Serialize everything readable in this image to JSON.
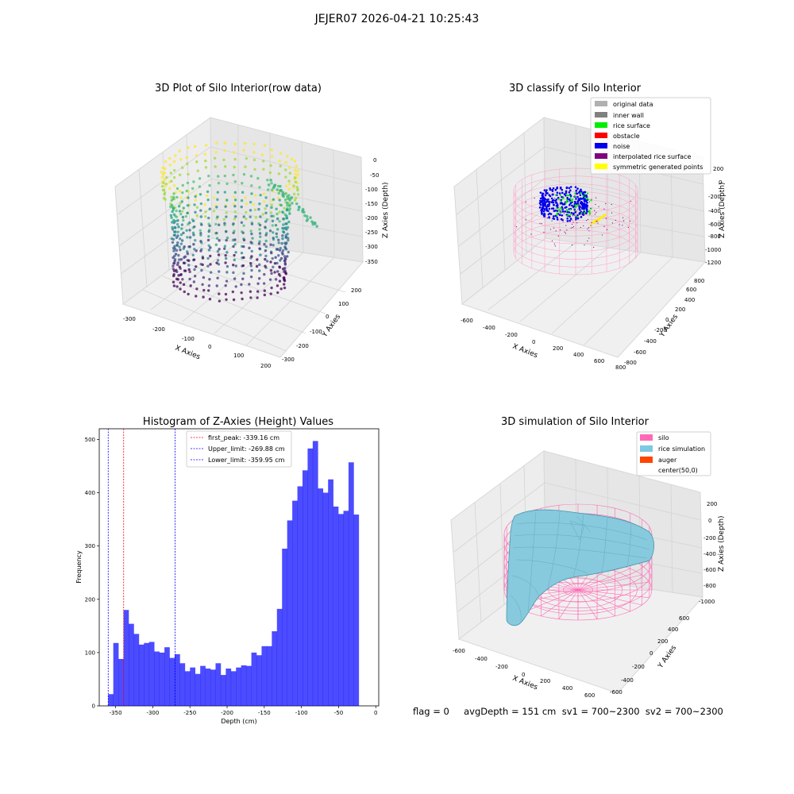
{
  "figure": {
    "suptitle": "JEJER07 2026-04-21 10:25:43",
    "footer": "flag = 0     avgDepth = 151 cm  sv1 = 700~2300  sv2 = 700~2300"
  },
  "panels": {
    "raw": {
      "title": "3D Plot of Silo Interior(row data)",
      "xlabel": "X Axies",
      "ylabel": "Y Axies",
      "zlabel": "Z Axies (Depth)",
      "xticks": [
        "-300",
        "-200",
        "-100",
        "0",
        "100",
        "200"
      ],
      "yticks": [
        "-300",
        "-200",
        "-100",
        "0",
        "100",
        "200"
      ],
      "zticks": [
        "0",
        "-50",
        "-100",
        "-150",
        "-200",
        "-250",
        "-300",
        "-350"
      ]
    },
    "classify": {
      "title": "3D classify of Silo Interior",
      "xlabel": "X Axies",
      "ylabel": "Y Axies",
      "zlabel": "Z Axies (Depth)",
      "xticks": [
        "-600",
        "-400",
        "-200",
        "0",
        "200",
        "400",
        "600",
        "800"
      ],
      "yticks": [
        "-800",
        "-600",
        "-400",
        "-200",
        "0",
        "200",
        "400",
        "600",
        "800"
      ],
      "zticks": [
        "200",
        "0",
        "-200",
        "-400",
        "-600",
        "-800",
        "-1000",
        "-1200"
      ],
      "legend": [
        {
          "label": "original data",
          "color": "#b0b0b0"
        },
        {
          "label": "inner wall",
          "color": "#808080"
        },
        {
          "label": "rice surface",
          "color": "#00ee00"
        },
        {
          "label": "obstacle",
          "color": "#ff0000"
        },
        {
          "label": "noise",
          "color": "#0000ee"
        },
        {
          "label": "interpolated rice surface",
          "color": "#800080"
        },
        {
          "label": "symmetric generated points",
          "color": "#ffff00"
        }
      ]
    },
    "simulation": {
      "title": "3D simulation of Silo Interior",
      "xlabel": "X Axies",
      "ylabel": "Y Axies",
      "zlabel": "Z Axies (Depth)",
      "xticks": [
        "-600",
        "-400",
        "-200",
        "0",
        "200",
        "400",
        "600"
      ],
      "yticks": [
        "-600",
        "-400",
        "-200",
        "0",
        "200",
        "400",
        "600"
      ],
      "zticks": [
        "200",
        "0",
        "-200",
        "-400",
        "-600",
        "-800",
        "-1000"
      ],
      "legend": [
        {
          "label": "silo",
          "color": "#ff69b4"
        },
        {
          "label": "rice simulation",
          "color": "#7ec8e3"
        },
        {
          "label": "auger",
          "color": "#ff4500"
        },
        {
          "label": "center(50,0)",
          "color": ""
        }
      ]
    }
  },
  "chart_data": [
    {
      "type": "histogram",
      "title": "Histogram of Z-Axies (Height) Values",
      "xlabel": "Depth (cm)",
      "ylabel": "Frequency",
      "xlim": [
        -372,
        4
      ],
      "ylim": [
        0,
        520
      ],
      "xticks": [
        -350,
        -300,
        -250,
        -200,
        -150,
        -100,
        -50,
        0
      ],
      "yticks": [
        0,
        100,
        200,
        300,
        400,
        500
      ],
      "bar_color": "#0000ff",
      "bins": {
        "start": -360,
        "width": 6.88,
        "counts": [
          22,
          118,
          88,
          180,
          154,
          135,
          115,
          118,
          120,
          102,
          100,
          110,
          90,
          97,
          80,
          65,
          72,
          60,
          75,
          70,
          68,
          80,
          58,
          70,
          65,
          72,
          76,
          75,
          100,
          95,
          112,
          112,
          140,
          182,
          295,
          348,
          385,
          412,
          442,
          483,
          497,
          408,
          400,
          425,
          374,
          360,
          366,
          457,
          359
        ]
      },
      "vlines": [
        {
          "label": "first_peak: -339.16 cm",
          "x": -339.16,
          "color": "#ff0000"
        },
        {
          "label": "Upper_limit: -269.88 cm",
          "x": -269.88,
          "color": "#0000ff"
        },
        {
          "label": "Lower_limit: -359.95 cm",
          "x": -359.95,
          "color": "#0000ff"
        }
      ]
    }
  ]
}
